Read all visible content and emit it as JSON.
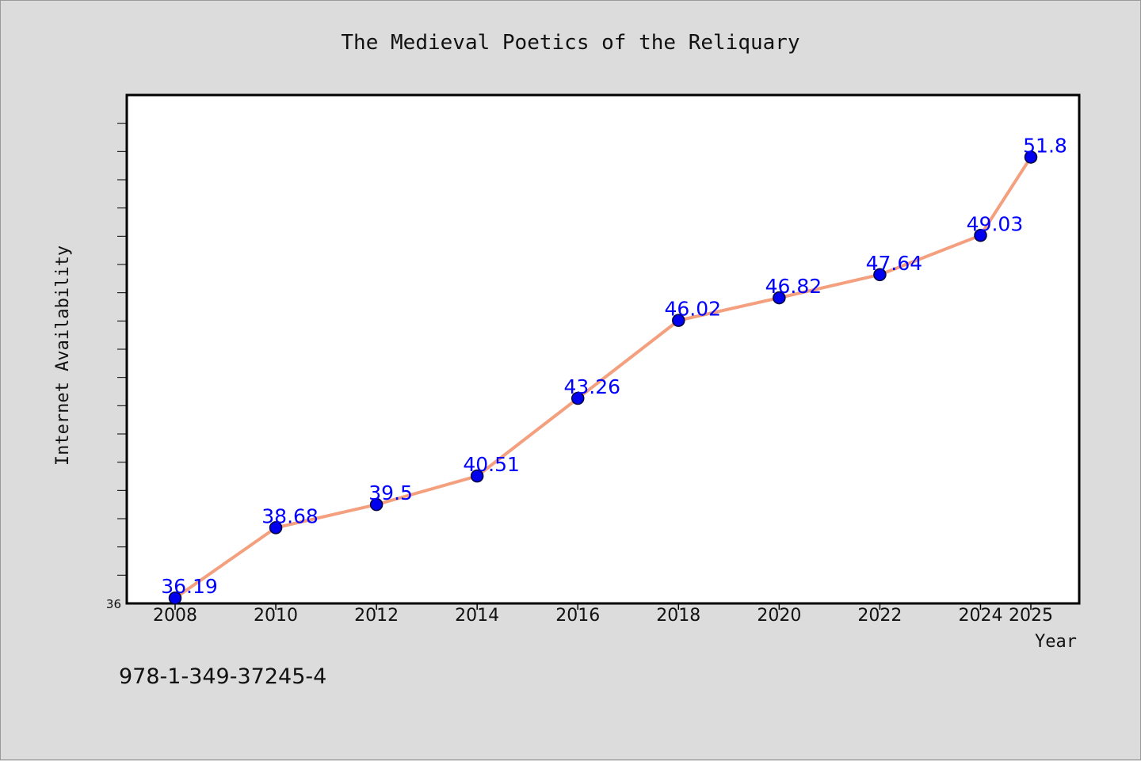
{
  "chart_data": {
    "type": "line",
    "title": "The Medieval Poetics of the Reliquary",
    "xlabel": "Year",
    "ylabel": "Internet Availability",
    "categories": [
      "2008",
      "2010",
      "2012",
      "2014",
      "2016",
      "2018",
      "2020",
      "2022",
      "2024",
      "2025"
    ],
    "series": [
      {
        "values": [
          36.19,
          38.68,
          39.5,
          40.51,
          43.26,
          46.02,
          46.82,
          47.64,
          49.03,
          51.8
        ],
        "labels": [
          "36.19",
          "38.68",
          "39.5",
          "40.51",
          "43.26",
          "46.02",
          "46.82",
          "47.64",
          "49.03",
          "51.8"
        ]
      }
    ],
    "ylim": [
      36,
      54
    ],
    "y_tick_labels": [
      "36"
    ],
    "grid": false,
    "legend": "none",
    "colors": {
      "line": "#f4a07f",
      "marker": "#0000ee",
      "marker_edge": "#00003c",
      "data_label": "#0000ff",
      "plot_background": "#ffffff",
      "page_background": "#dcdcdc"
    }
  },
  "footer": {
    "isbn": "978-1-349-37245-4"
  }
}
